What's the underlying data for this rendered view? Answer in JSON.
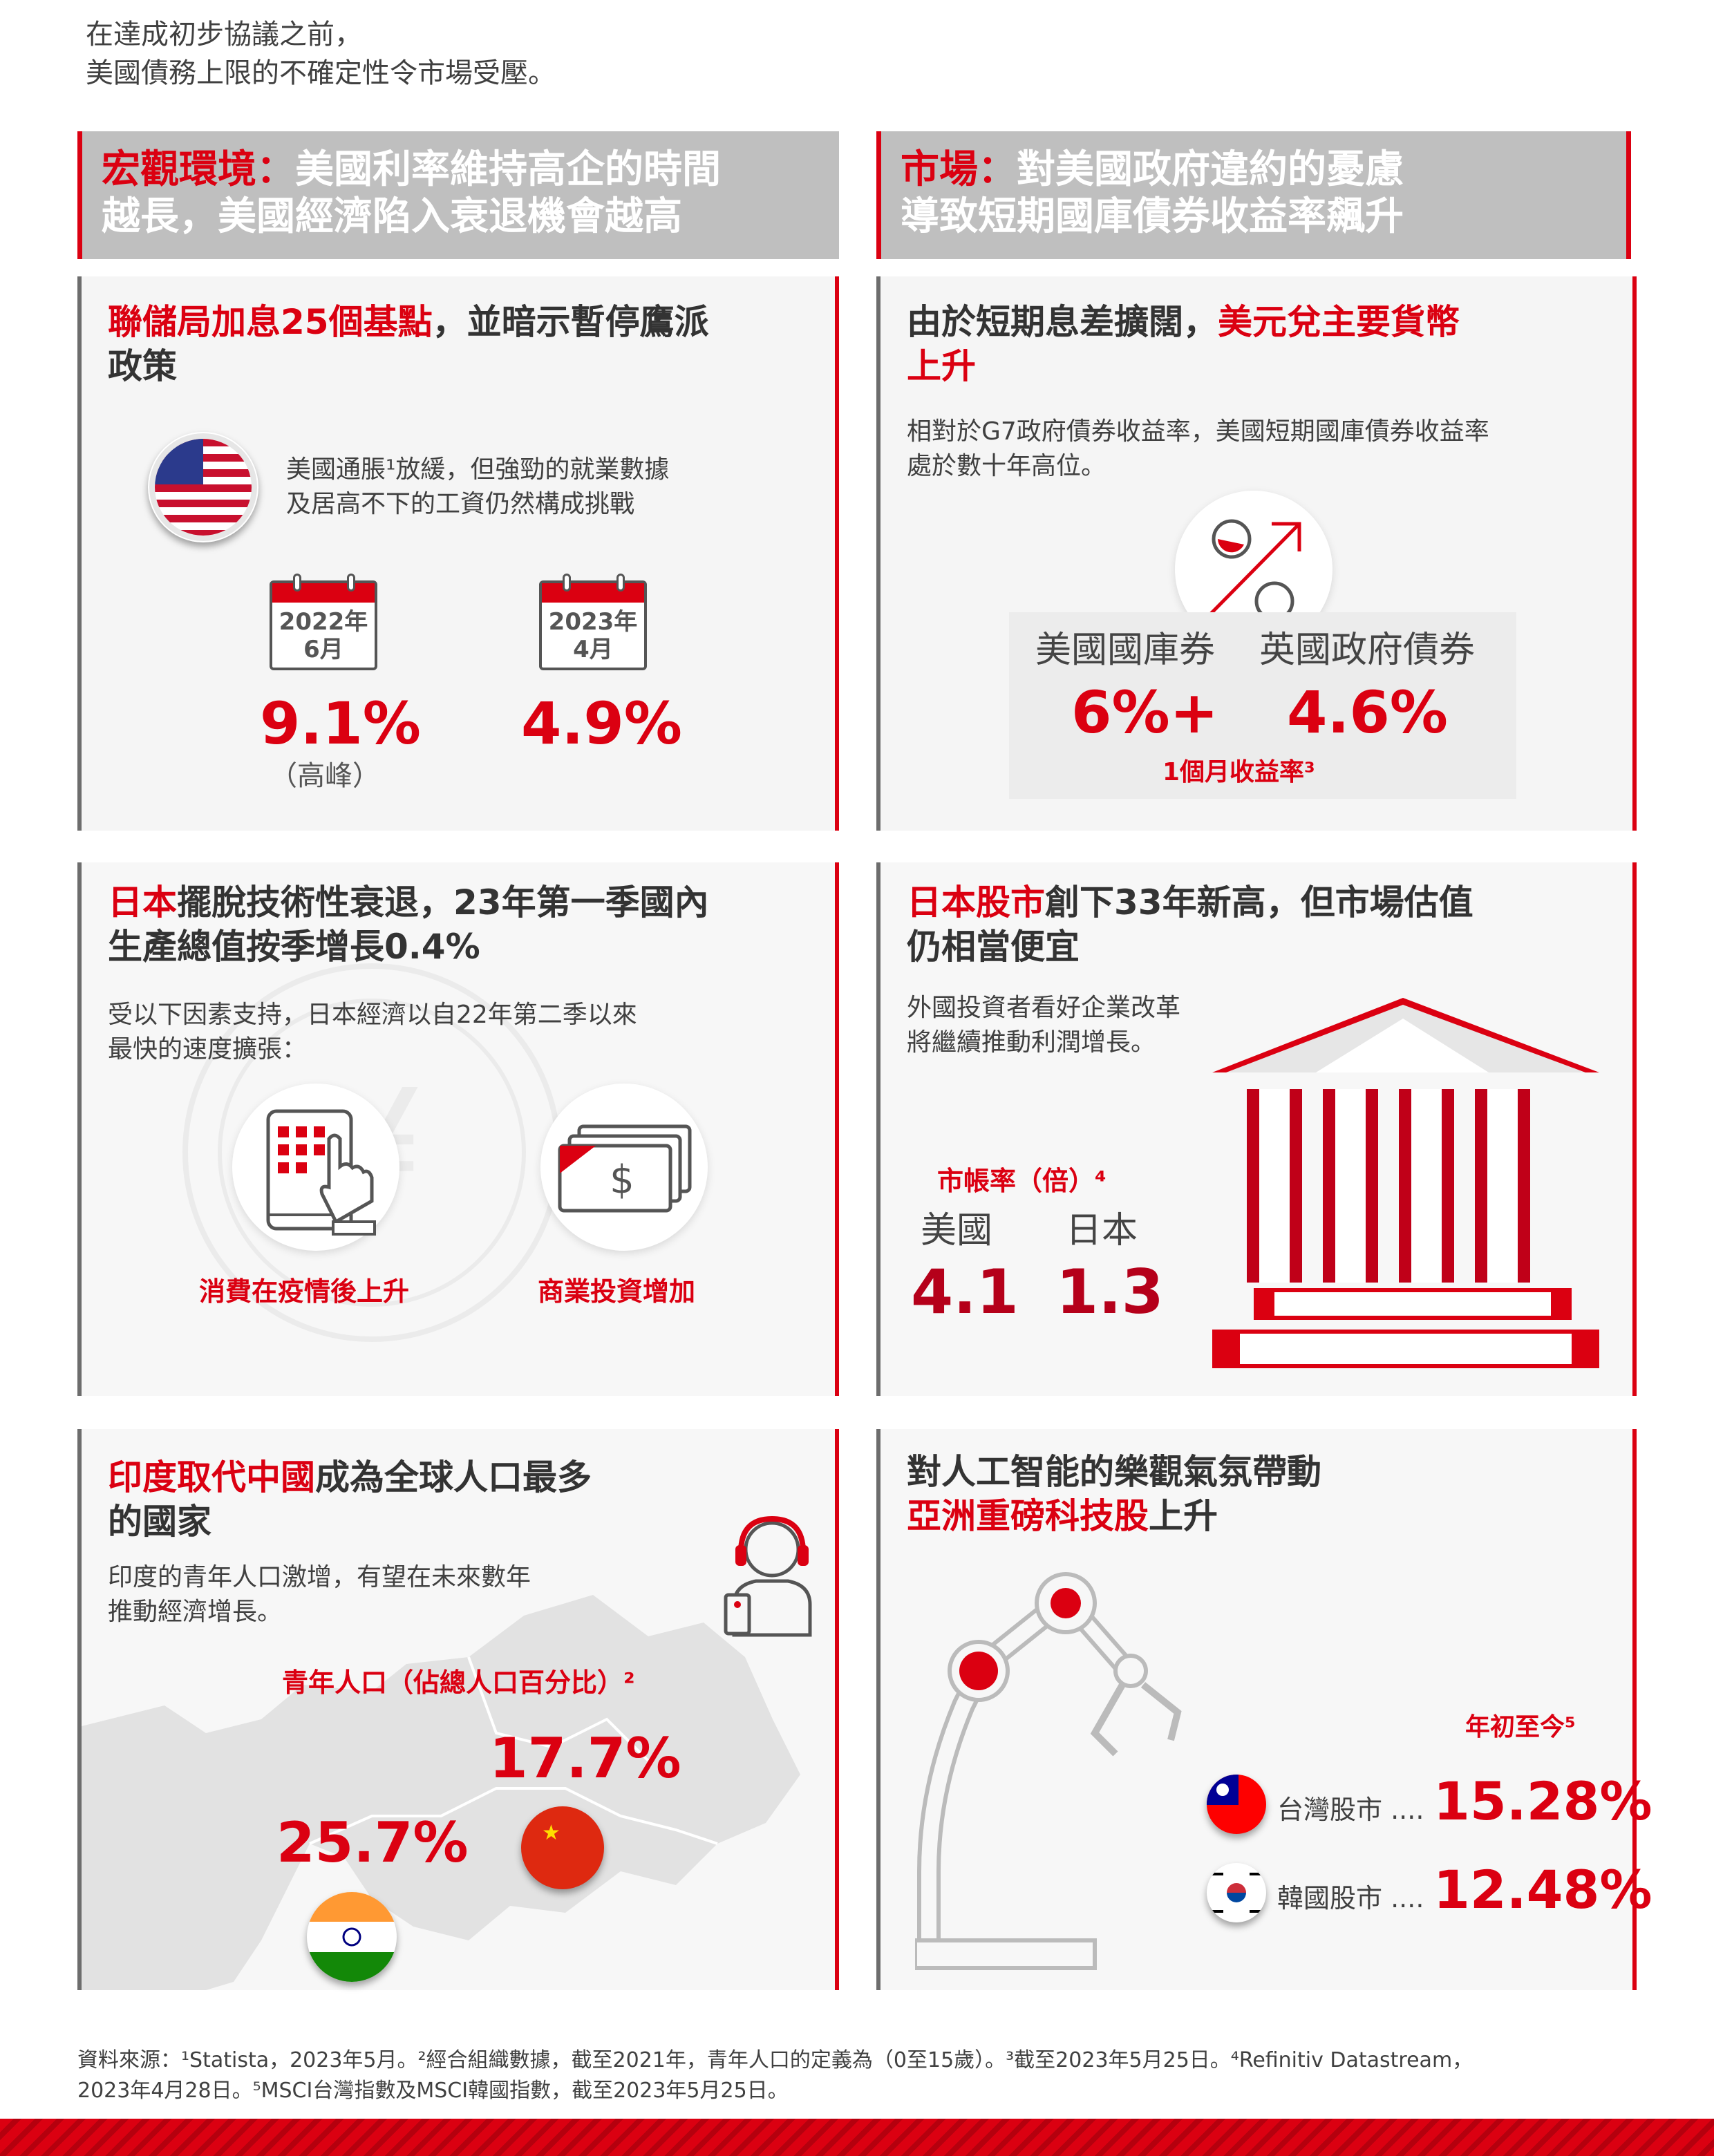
{
  "intro": {
    "line1": "在達成初步協議之前，",
    "line2": "美國債務上限的不確定性令市場受壓。"
  },
  "header_left": {
    "accent": "宏觀環境：",
    "line1_rest": "美國利率維持高企的時間",
    "line2": "越長，美國經濟陷入衰退機會越高"
  },
  "header_right": {
    "accent": "市場：",
    "line1_rest": "對美國政府違約的憂慮",
    "line2": "導致短期國庫債券收益率飆升"
  },
  "panel_fed": {
    "title_red": "聯儲局加息25個基點",
    "title_rest": "，並暗示暫停鷹派",
    "title_line2": "政策",
    "text_line1": "美國通脹¹放緩，但強勁的就業數據",
    "text_line2": "及居高不下的工資仍然構成挑戰",
    "cal1_line1": "2022年",
    "cal1_line2": "6月",
    "cal2_line1": "2023年",
    "cal2_line2": "4月",
    "value1": "9.1%",
    "value1_note": "（高峰）",
    "value2": "4.9%"
  },
  "panel_usd": {
    "title_part1": "由於短期息差擴闊，",
    "title_red": "美元兌主要貨幣",
    "title_line2": "上升",
    "text_line1": "相對於G7政府債券收益率，美國短期國庫債券收益率",
    "text_line2": "處於數十年高位。",
    "label1": "美國國庫券",
    "label2": "英國政府債券",
    "value1": "6%+",
    "value2": "4.6%",
    "caption": "1個月收益率³"
  },
  "panel_japan_gdp": {
    "title_red": "日本",
    "title_rest": "擺脫技術性衰退，23年第一季國內",
    "title_line2": "生產總值按季增長0.4%",
    "text_line1": "受以下因素支持，日本經濟以自22年第二季以來",
    "text_line2": "最快的速度擴張：",
    "factor1": "消費在疫情後上升",
    "factor2": "商業投資增加"
  },
  "panel_japan_stock": {
    "title_red": "日本股市",
    "title_rest": "創下33年新高，但市場估值",
    "title_line2": "仍相當便宜",
    "text_line1": "外國投資者看好企業改革",
    "text_line2": "將繼續推動利潤增長。",
    "pb_label": "市帳率（倍）⁴",
    "country1": "美國",
    "country2": "日本",
    "value1": "4.1",
    "value2": "1.3"
  },
  "panel_india": {
    "title_red": "印度取代中國",
    "title_rest": "成為全球人口最多",
    "title_line2": "的國家",
    "text_line1": "印度的青年人口激增，有望在未來數年",
    "text_line2": "推動經濟增長。",
    "youth_label": "青年人口（佔總人口百分比）²",
    "china_value": "17.7%",
    "india_value": "25.7%"
  },
  "panel_ai": {
    "title_line1": "對人工智能的樂觀氣氛帶動",
    "title_red": "亞洲重磅科技股",
    "title_rest": "上升",
    "ytd_label": "年初至今⁵",
    "market1": "台灣股市 ....",
    "value1": "15.28%",
    "market2": "韓國股市 ....",
    "value2": "12.48%"
  },
  "footer": {
    "line1": "資料來源：¹Statista，2023年5月。²經合組織數據，截至2021年，青年人口的定義為（0至15歲）。³截至2023年5月25日。⁴Refinitiv Datastream，",
    "line2": "2023年4月28日。⁵MSCI台灣指數及MSCI韓國指數，截至2023年5月25日。"
  },
  "colors": {
    "accent": "#db0011",
    "header_bg": "#bfbfbf",
    "panel_bg": "#f7f7f7"
  }
}
